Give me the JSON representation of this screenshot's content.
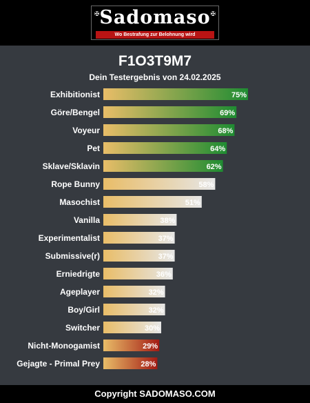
{
  "header": {
    "logo_text": "Sadomaso",
    "logo_slogan": "Wo Bestrafung zur Belohnung wird",
    "logo_ornament": "✠"
  },
  "footer": {
    "copyright": "Copyright SADOMASO.COM"
  },
  "colors": {
    "background": "#363a40",
    "band": "#000000",
    "high_start": "#e9bd68",
    "high_end": "#1f8c32",
    "mid_start": "#e9bd68",
    "mid_end": "#e6e6e6",
    "low_start": "#e9bd68",
    "low_end": "#a31b14"
  },
  "chart_data": {
    "type": "bar",
    "orientation": "horizontal",
    "title": "F1O3T9M7",
    "subtitle": "Dein Testergebnis von 24.02.2025",
    "categories": [
      "Exhibitionist",
      "Göre/Bengel",
      "Voyeur",
      "Pet",
      "Sklave/Sklavin",
      "Rope Bunny",
      "Masochist",
      "Vanilla",
      "Experimentalist",
      "Submissive(r)",
      "Erniedrigte",
      "Ageplayer",
      "Boy/Girl",
      "Switcher",
      "Nicht-Monogamist",
      "Gejagte - Primal Prey"
    ],
    "values": [
      75,
      69,
      68,
      64,
      62,
      58,
      51,
      38,
      37,
      37,
      36,
      32,
      32,
      30,
      29,
      28
    ],
    "labels": [
      "75%",
      "69%",
      "68%",
      "64%",
      "62%",
      "58%",
      "51%",
      "38%",
      "37%",
      "37%",
      "36%",
      "32%",
      "32%",
      "30%",
      "29%",
      "28%"
    ],
    "tiers": [
      "high",
      "high",
      "high",
      "high",
      "high",
      "mid",
      "mid",
      "mid",
      "mid",
      "mid",
      "mid",
      "mid",
      "mid",
      "mid",
      "low",
      "low"
    ],
    "xlim": [
      0,
      100
    ],
    "grid": false,
    "legend": "none"
  }
}
